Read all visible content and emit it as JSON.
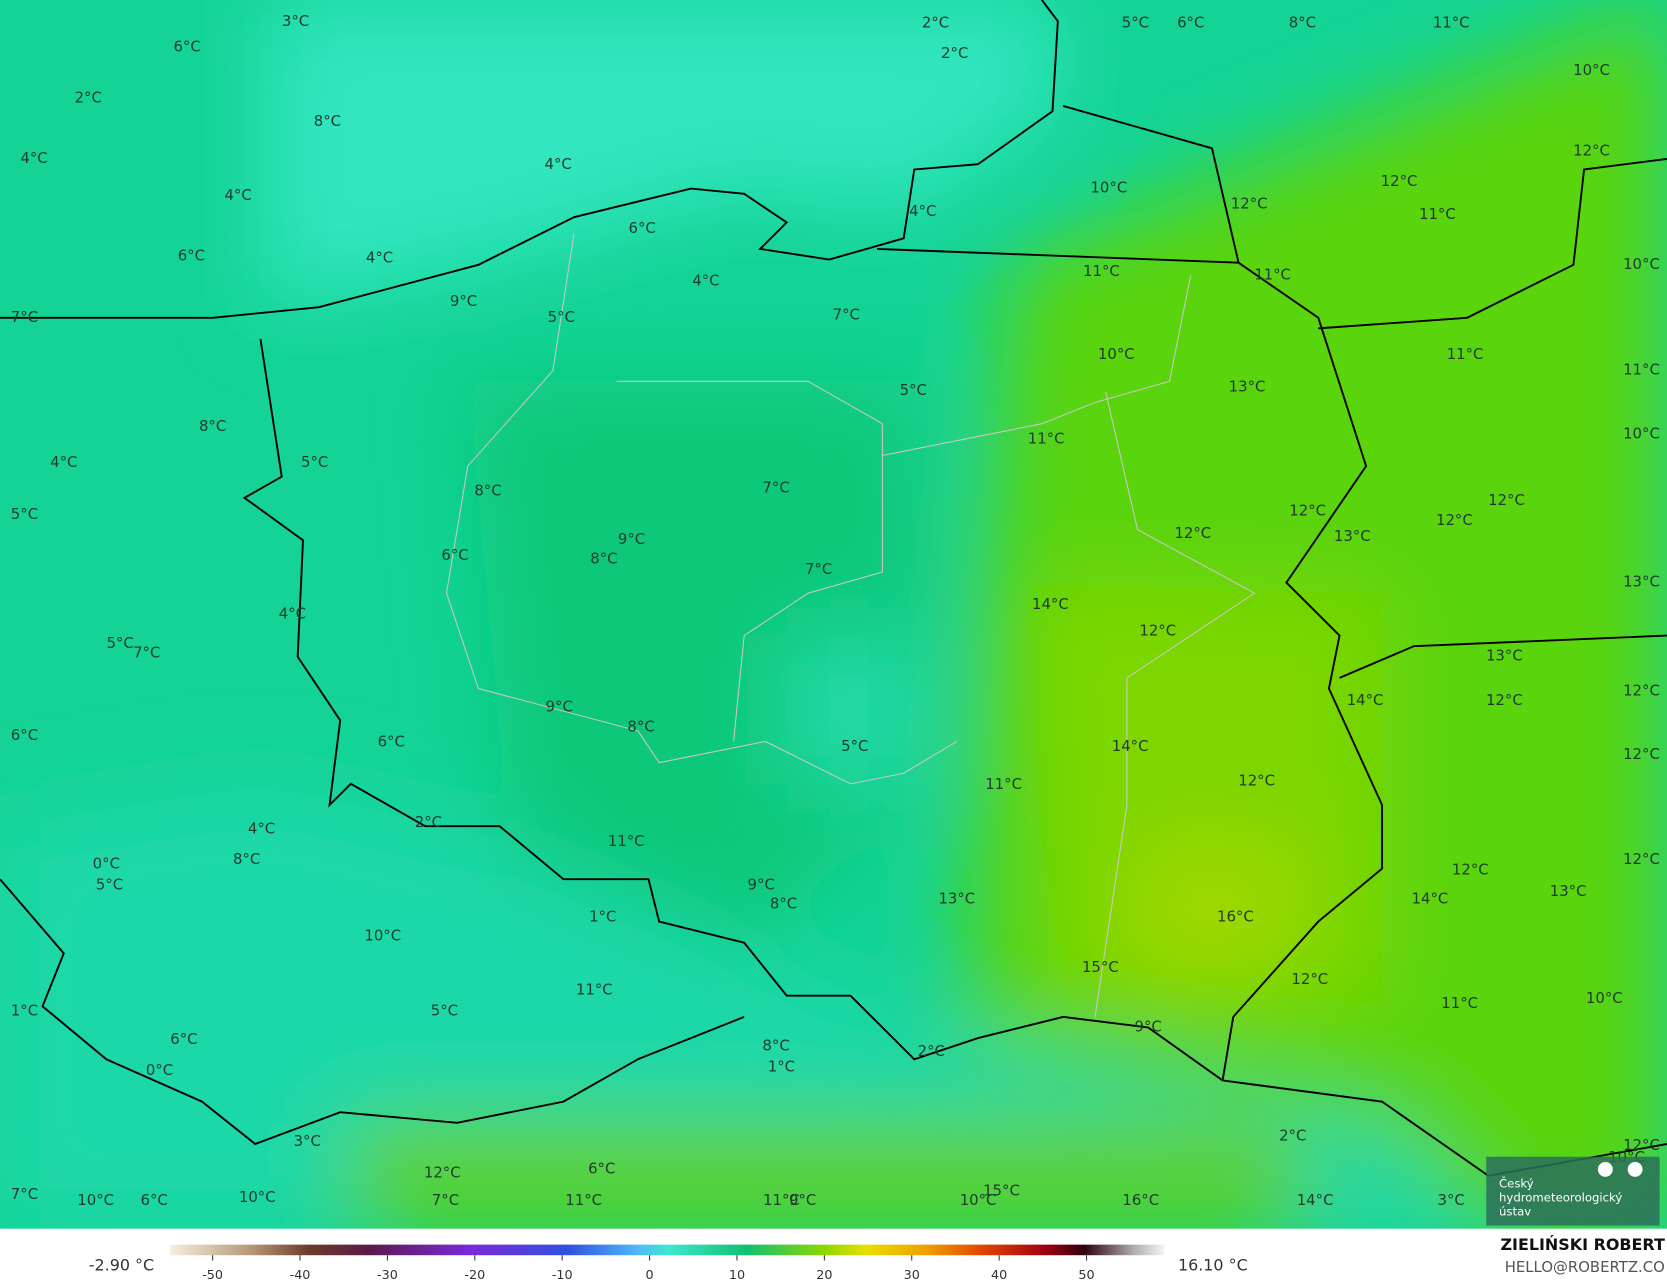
{
  "map": {
    "labels": [
      "3°C",
      "6°C",
      "2°C",
      "4°C",
      "8°C",
      "4°C",
      "4°C",
      "6°C",
      "4°C",
      "2°C",
      "2°C",
      "5°C",
      "6°C",
      "8°C",
      "11°C",
      "10°C",
      "12°C",
      "12°C",
      "10°C",
      "12°C",
      "11°C",
      "4°C",
      "6°C",
      "4°C",
      "9°C",
      "5°C",
      "7°C",
      "7°C",
      "11°C",
      "11°C",
      "10°C",
      "10°C",
      "11°C",
      "11°C",
      "5°C",
      "13°C",
      "8°C",
      "11°C",
      "10°C",
      "4°C",
      "5°C",
      "7°C",
      "8°C",
      "12°C",
      "12°C",
      "12°C",
      "5°C",
      "9°C",
      "12°C",
      "13°C",
      "6°C",
      "8°C",
      "7°C",
      "13°C",
      "14°C",
      "4°C",
      "12°C",
      "5°C",
      "7°C",
      "13°C",
      "12°C",
      "14°C",
      "12°C",
      "6°C",
      "9°C",
      "8°C",
      "6°C",
      "5°C",
      "14°C",
      "12°C",
      "11°C",
      "12°C",
      "4°C",
      "2°C",
      "8°C",
      "0°C",
      "5°C",
      "11°C",
      "12°C",
      "12°C",
      "9°C",
      "8°C",
      "13°C",
      "14°C",
      "13°C",
      "1°C",
      "16°C",
      "10°C",
      "15°C",
      "12°C",
      "11°C",
      "11°C",
      "10°C",
      "1°C",
      "5°C",
      "9°C",
      "6°C",
      "8°C",
      "2°C",
      "1°C",
      "0°C",
      "3°C",
      "2°C",
      "10°C",
      "12°C",
      "12°C",
      "6°C",
      "15°C",
      "7°C",
      "10°C",
      "6°C",
      "10°C",
      "7°C",
      "11°C",
      "11°C",
      "9°C",
      "10°C",
      "16°C",
      "14°C",
      "3°C"
    ]
  },
  "colorbar": {
    "ticks": [
      -50,
      -40,
      -30,
      -20,
      -10,
      0,
      10,
      20,
      30,
      40,
      50
    ],
    "min_label": "-2.90 °C",
    "max_label": "16.10 °C"
  },
  "logo": {
    "lines": [
      "Český",
      "hydrometeorologický",
      "ústav"
    ]
  },
  "author": {
    "name": "ZIELIŃSKI ROBERT",
    "email": "HELLO@ROBERTZ.CO"
  }
}
